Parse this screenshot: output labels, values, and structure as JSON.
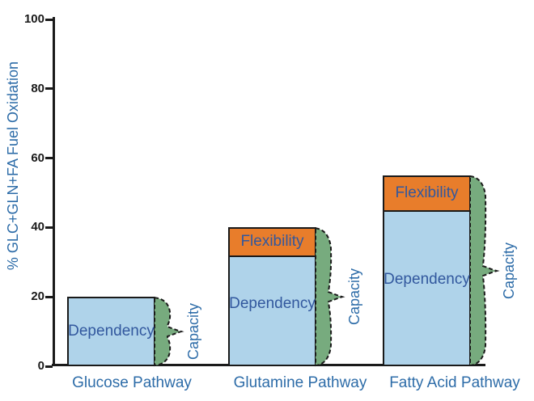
{
  "chart_data": {
    "type": "bar",
    "stacked": true,
    "title": "",
    "xlabel": "",
    "ylabel": "% GLC+GLN+FA Fuel Oxidation",
    "ylim": [
      0,
      100
    ],
    "yticks": [
      0,
      20,
      40,
      60,
      80,
      100
    ],
    "grid": false,
    "legend_position": "none",
    "categories": [
      "Glucose Pathway",
      "Glutamine Pathway",
      "Fatty Acid Pathway"
    ],
    "series": [
      {
        "name": "Dependency",
        "values": [
          20,
          32,
          45
        ],
        "style": "filled bar segment"
      },
      {
        "name": "Flexibility",
        "values": [
          0,
          8,
          10
        ],
        "style": "filled bar segment stacked on Dependency"
      },
      {
        "name": "Capacity",
        "values": [
          20,
          40,
          55
        ],
        "style": "green half-violin brace with dashed outline spanning full bar height at right edge of bar"
      }
    ]
  },
  "labels": {
    "dependency": "Dependency",
    "flexibility": "Flexibility",
    "capacity": "Capacity"
  },
  "colors": {
    "dependency_fill": "#afd3ea",
    "flexibility_fill": "#e87d2b",
    "capacity_fill": "#77ab7e",
    "outline": "#1a1a1a",
    "axis_text": "#1a1a1a",
    "blue_text": "#2d6ca8",
    "inbar_text": "#32589e"
  }
}
